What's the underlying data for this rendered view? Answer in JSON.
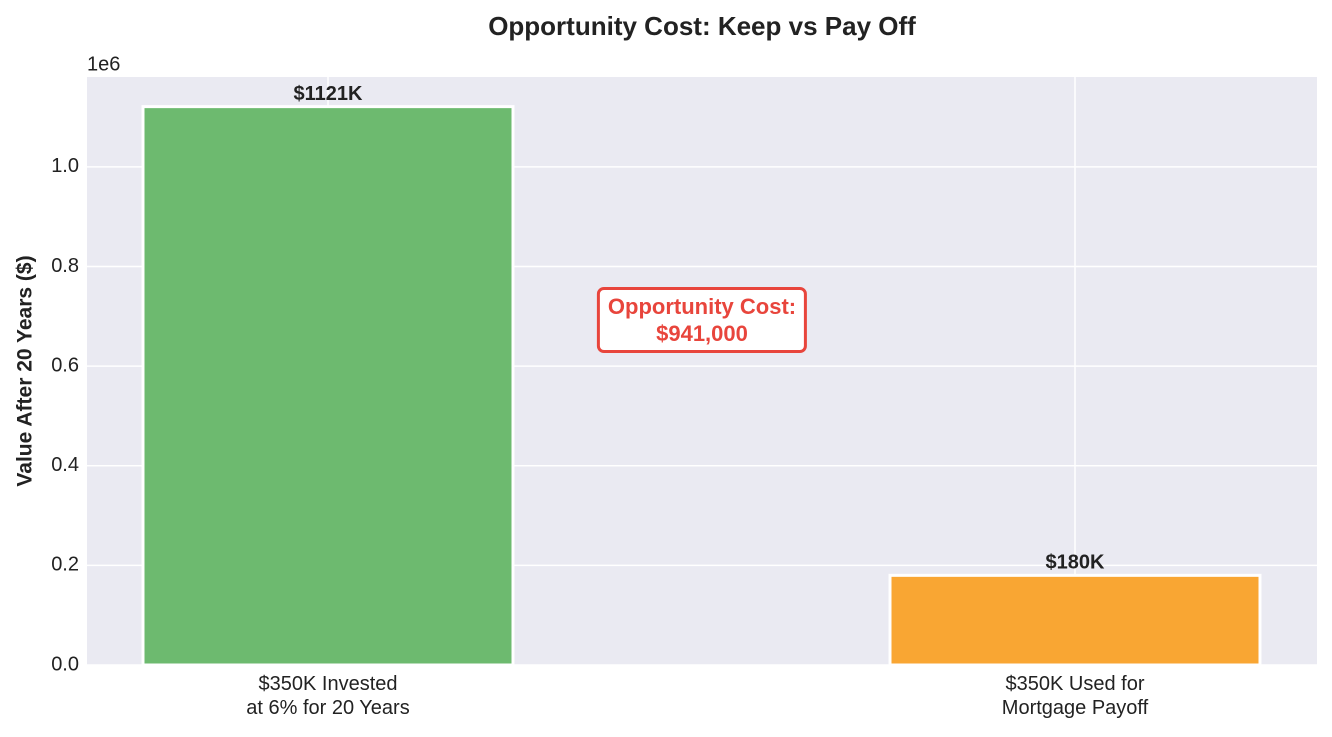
{
  "chart_data": {
    "type": "bar",
    "title": "Opportunity Cost: Keep vs Pay Off",
    "y_label": "Value After 20 Years ($)",
    "y_offset_label": "1e6",
    "categories": [
      "$350K Invested\nat 6% for 20 Years",
      "$350K Used for\nMortgage Payoff"
    ],
    "values": [
      1121000,
      180000
    ],
    "value_labels": [
      "$1121K",
      "$180K"
    ],
    "colors": [
      "#6dba6f",
      "#f9a633"
    ],
    "annotation": "Opportunity Cost:\n$941,000",
    "annotation_color": "#e8453c",
    "ylim": [
      0,
      1180500
    ],
    "yticks": [
      {
        "value": 0,
        "label": "0.0"
      },
      {
        "value": 200000,
        "label": "0.2"
      },
      {
        "value": 400000,
        "label": "0.4"
      },
      {
        "value": 600000,
        "label": "0.6"
      },
      {
        "value": 800000,
        "label": "0.8"
      },
      {
        "value": 1000000,
        "label": "1.0"
      }
    ],
    "grid": true
  }
}
